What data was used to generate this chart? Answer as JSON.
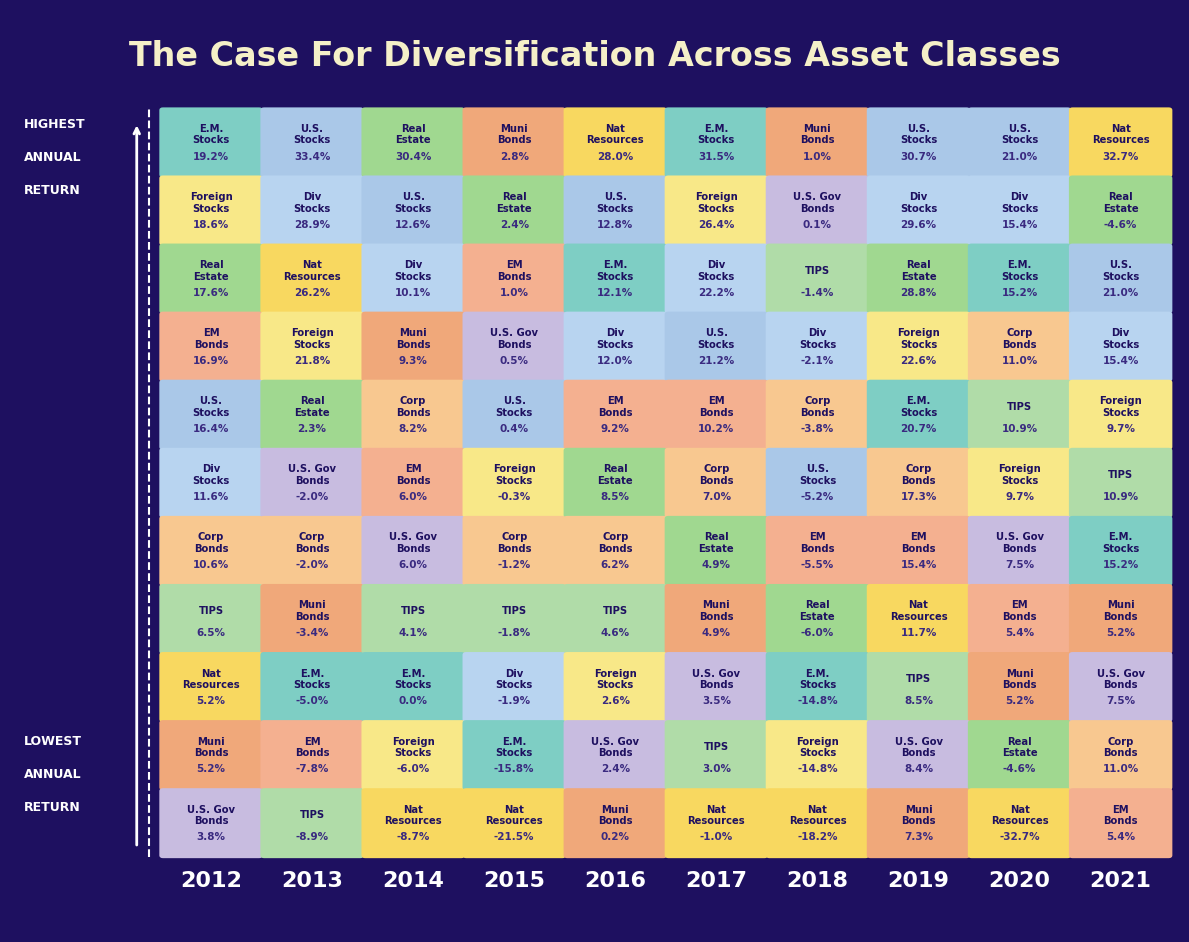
{
  "title": "The Case For Diversification Across Asset Classes",
  "background_color": "#1e1060",
  "title_color": "#f5f0c8",
  "years": [
    "2012",
    "2013",
    "2014",
    "2015",
    "2016",
    "2017",
    "2018",
    "2019",
    "2020",
    "2021"
  ],
  "asset_colors": {
    "E.M. Stocks": "#7ecec4",
    "U.S. Stocks": "#b8d4e8",
    "Real Estate": "#c8e6b0",
    "Muni Bonds": "#f4b89a",
    "Nat Resources": "#fde8a0",
    "Foreign Stocks": "#fde8a0",
    "Div Stocks": "#b8d4e8",
    "EM Bonds": "#f4b89a",
    "U.S. Gov Bonds": "#d0c8e8",
    "Corp Bonds": "#f4b89a",
    "TIPS": "#c8e6b0",
    "Real Estate2": "#c8e6b0"
  },
  "cell_colors": {
    "E.M. Stocks": "#7ecec4",
    "U.S. Stocks": "#b0cfe8",
    "Real Estate": "#a8d898",
    "Muni Bonds": "#f0a882",
    "Nat Resources": "#f8d870",
    "Foreign Stocks": "#f8e898",
    "Div Stocks": "#c0d8f0",
    "EM Bonds": "#f0b898",
    "U.S. Gov Bonds": "#c8c0e0",
    "Corp Bonds": "#f8c8a8",
    "TIPS": "#b8e0b8"
  },
  "grid": [
    [
      {
        "label": "E.M. Stocks",
        "value": "19.2%"
      },
      {
        "label": "U.S. Stocks",
        "value": "33.4%"
      },
      {
        "label": "Real Estate",
        "value": "30.4%"
      },
      {
        "label": "Muni Bonds",
        "value": "2.8%"
      },
      {
        "label": "Nat Resources",
        "value": "28.0%"
      },
      {
        "label": "E.M. Stocks",
        "value": "31.5%"
      },
      {
        "label": "Muni Bonds",
        "value": "1.0%"
      },
      {
        "label": "U.S. Stocks",
        "value": "30.7%"
      },
      {
        "label": "U.S. Stocks",
        "value": "21.0%"
      },
      {
        "label": "Nat Resources",
        "value": "32.7%"
      }
    ],
    [
      {
        "label": "Foreign Stocks",
        "value": "18.6%"
      },
      {
        "label": "Div Stocks",
        "value": "28.9%"
      },
      {
        "label": "U.S. Stocks",
        "value": "12.6%"
      },
      {
        "label": "Real Estate",
        "value": "2.4%"
      },
      {
        "label": "U.S. Stocks",
        "value": "12.8%"
      },
      {
        "label": "Foreign Stocks",
        "value": "26.4%"
      },
      {
        "label": "U.S. Gov Bonds",
        "value": "0.1%"
      },
      {
        "label": "Div Stocks",
        "value": "29.6%"
      },
      {
        "label": "Div Stocks",
        "value": "15.4%"
      },
      {
        "label": "Real Estate",
        "value": "-4.6%"
      }
    ],
    [
      {
        "label": "Real Estate",
        "value": "17.6%"
      },
      {
        "label": "Nat Resources",
        "value": "26.2%"
      },
      {
        "label": "Div Stocks",
        "value": "10.1%"
      },
      {
        "label": "EM Bonds",
        "value": "1.0%"
      },
      {
        "label": "E.M. Stocks",
        "value": "12.1%"
      },
      {
        "label": "Div Stocks",
        "value": "22.2%"
      },
      {
        "label": "TIPS",
        "value": "-1.4%"
      },
      {
        "label": "Real Estate",
        "value": "28.8%"
      },
      {
        "label": "E.M. Stocks",
        "value": "15.2%"
      },
      {
        "label": "U.S. Stocks",
        "value": "21.0%"
      }
    ],
    [
      {
        "label": "EM Bonds",
        "value": "16.9%"
      },
      {
        "label": "Foreign Stocks",
        "value": "21.8%"
      },
      {
        "label": "Muni Bonds",
        "value": "9.3%"
      },
      {
        "label": "U.S. Gov Bonds",
        "value": "0.5%"
      },
      {
        "label": "Div Stocks",
        "value": "12.0%"
      },
      {
        "label": "U.S. Stocks",
        "value": "21.2%"
      },
      {
        "label": "Div Stocks",
        "value": "-2.1%"
      },
      {
        "label": "Foreign Stocks",
        "value": "22.6%"
      },
      {
        "label": "Corp Bonds",
        "value": "11.0%"
      },
      {
        "label": "Div Stocks",
        "value": "15.4%"
      }
    ],
    [
      {
        "label": "U.S. Stocks",
        "value": "16.4%"
      },
      {
        "label": "Real Estate",
        "value": "2.3%"
      },
      {
        "label": "Corp Bonds",
        "value": "8.2%"
      },
      {
        "label": "U.S. Stocks",
        "value": "0.4%"
      },
      {
        "label": "EM Bonds",
        "value": "9.2%"
      },
      {
        "label": "EM Bonds",
        "value": "10.2%"
      },
      {
        "label": "Corp Bonds",
        "value": "-3.8%"
      },
      {
        "label": "E.M. Stocks",
        "value": "20.7%"
      },
      {
        "label": "TIPS",
        "value": "10.9%"
      },
      {
        "label": "Foreign Stocks",
        "value": "9.7%"
      }
    ],
    [
      {
        "label": "Div Stocks",
        "value": "11.6%"
      },
      {
        "label": "U.S. Gov Bonds",
        "value": "-2.0%"
      },
      {
        "label": "EM Bonds",
        "value": "6.0%"
      },
      {
        "label": "Foreign Stocks",
        "value": "-0.3%"
      },
      {
        "label": "Real Estate",
        "value": "8.5%"
      },
      {
        "label": "Corp Bonds",
        "value": "7.0%"
      },
      {
        "label": "U.S. Stocks",
        "value": "-5.2%"
      },
      {
        "label": "Corp Bonds",
        "value": "17.3%"
      },
      {
        "label": "Foreign Stocks",
        "value": "9.7%"
      },
      {
        "label": "TIPS",
        "value": "10.9%"
      }
    ],
    [
      {
        "label": "Corp Bonds",
        "value": "10.6%"
      },
      {
        "label": "Corp Bonds",
        "value": "-2.0%"
      },
      {
        "label": "U.S. Gov Bonds",
        "value": "6.0%"
      },
      {
        "label": "Corp Bonds",
        "value": "-1.2%"
      },
      {
        "label": "Corp Bonds",
        "value": "6.2%"
      },
      {
        "label": "Real Estate",
        "value": "4.9%"
      },
      {
        "label": "EM Bonds",
        "value": "-5.5%"
      },
      {
        "label": "EM Bonds",
        "value": "15.4%"
      },
      {
        "label": "U.S. Gov Bonds",
        "value": "7.5%"
      },
      {
        "label": "E.M. Stocks",
        "value": "15.2%"
      }
    ],
    [
      {
        "label": "TIPS",
        "value": "6.5%"
      },
      {
        "label": "Muni Bonds",
        "value": "-3.4%"
      },
      {
        "label": "TIPS",
        "value": "4.1%"
      },
      {
        "label": "TIPS",
        "value": "-1.8%"
      },
      {
        "label": "TIPS",
        "value": "4.6%"
      },
      {
        "label": "Muni Bonds",
        "value": "4.9%"
      },
      {
        "label": "Real Estate",
        "value": "-6.0%"
      },
      {
        "label": "Nat Resources",
        "value": "11.7%"
      },
      {
        "label": "EM Bonds",
        "value": "5.4%"
      },
      {
        "label": "Muni Bonds",
        "value": "5.2%"
      }
    ],
    [
      {
        "label": "Nat Resources",
        "value": "5.2%"
      },
      {
        "label": "E.M. Stocks",
        "value": "-5.0%"
      },
      {
        "label": "E.M. Stocks",
        "value": "0.0%"
      },
      {
        "label": "Div Stocks",
        "value": "-1.9%"
      },
      {
        "label": "Foreign Stocks",
        "value": "2.6%"
      },
      {
        "label": "U.S. Gov Bonds",
        "value": "3.5%"
      },
      {
        "label": "E.M. Stocks",
        "value": "-14.8%"
      },
      {
        "label": "TIPS",
        "value": "8.5%"
      },
      {
        "label": "Muni Bonds",
        "value": "5.2%"
      },
      {
        "label": "U.S. Gov Bonds",
        "value": "7.5%"
      }
    ],
    [
      {
        "label": "Muni Bonds",
        "value": "5.2%"
      },
      {
        "label": "EM Bonds",
        "value": "-7.8%"
      },
      {
        "label": "Foreign Stocks",
        "value": "-6.0%"
      },
      {
        "label": "E.M. Stocks",
        "value": "-15.8%"
      },
      {
        "label": "U.S. Gov Bonds",
        "value": "2.4%"
      },
      {
        "label": "TIPS",
        "value": "3.0%"
      },
      {
        "label": "Foreign Stocks",
        "value": "-14.8%"
      },
      {
        "label": "U.S. Gov Bonds",
        "value": "8.4%"
      },
      {
        "label": "Real Estate",
        "value": "-4.6%"
      },
      {
        "label": "Corp Bonds",
        "value": "11.0%"
      }
    ],
    [
      {
        "label": "U.S. Gov Bonds",
        "value": "3.8%"
      },
      {
        "label": "TIPS",
        "value": "-8.9%"
      },
      {
        "label": "Nat Resources",
        "value": "-8.7%"
      },
      {
        "label": "Nat Resources",
        "value": "-21.5%"
      },
      {
        "label": "Muni Bonds",
        "value": "0.2%"
      },
      {
        "label": "Nat Resources",
        "value": "-1.0%"
      },
      {
        "label": "Nat Resources",
        "value": "-18.2%"
      },
      {
        "label": "Muni Bonds",
        "value": "7.3%"
      },
      {
        "label": "Nat Resources",
        "value": "-32.7%"
      },
      {
        "label": "EM Bonds",
        "value": "5.4%"
      }
    ]
  ]
}
